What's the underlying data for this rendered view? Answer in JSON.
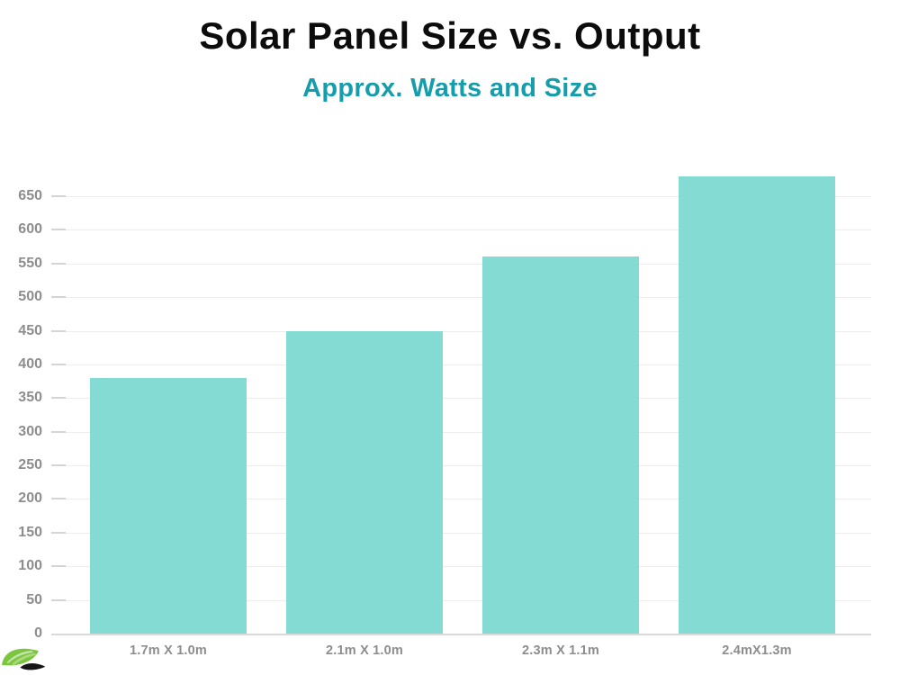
{
  "title": "Solar Panel Size vs. Output",
  "subtitle": "Approx. Watts and Size",
  "logo_icon": "leaf-logo",
  "chart_data": {
    "type": "bar",
    "title": "Solar Panel Size vs. Output",
    "subtitle": "Approx. Watts and Size",
    "categories": [
      "1.7m X 1.0m",
      "2.1m X 1.0m",
      "2.3m X 1.1m",
      "2.4mX1.3m"
    ],
    "values": [
      380,
      450,
      560,
      680
    ],
    "xlabel": "",
    "ylabel": "",
    "ylim": [
      0,
      650
    ],
    "yticks": [
      0,
      50,
      100,
      150,
      200,
      250,
      300,
      350,
      400,
      450,
      500,
      550,
      600,
      650
    ],
    "grid": true,
    "legend": false,
    "colors": {
      "bar": "#83dbd3",
      "axis_label": "#8d8d8d",
      "gridline": "#ededed",
      "tick": "#d4d4d4",
      "baseline": "#d9d9d9",
      "title": "#0c0c0c",
      "subtitle": "#159dab",
      "logo_green": "#7cc53e",
      "logo_green_dark": "#5da32c",
      "logo_black": "#161616"
    }
  }
}
